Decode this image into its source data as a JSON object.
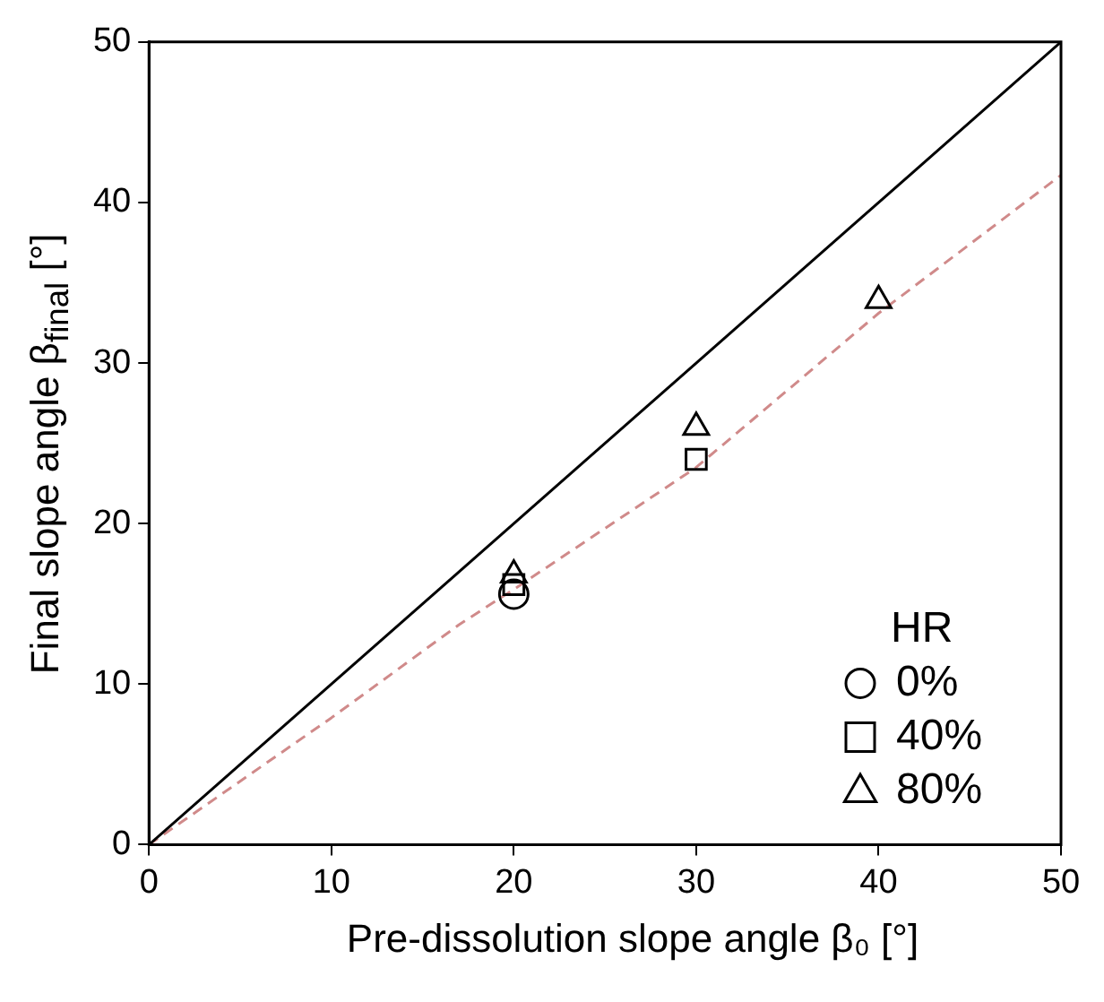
{
  "chart_data": {
    "type": "scatter",
    "xlabel": "Pre-dissolution slope angle β₀ [°]",
    "ylabel": "Final slope angle β$_{final}$ [°]",
    "xlim": [
      0,
      50
    ],
    "ylim": [
      0,
      50
    ],
    "xticks": [
      0,
      10,
      20,
      30,
      40,
      50
    ],
    "yticks": [
      0,
      10,
      20,
      30,
      40,
      50
    ],
    "legend": "bottom right",
    "legend_title": "HR",
    "series": [
      {
        "name": "0%",
        "type": "scatter",
        "marker": "circle",
        "color": "#000000",
        "x": [
          20
        ],
        "values": [
          15.6
        ]
      },
      {
        "name": "40%",
        "type": "scatter",
        "marker": "square",
        "color": "#000000",
        "x": [
          20,
          30
        ],
        "values": [
          16.2,
          24
        ]
      },
      {
        "name": "80%",
        "type": "scatter",
        "marker": "triangle",
        "color": "#000000",
        "x": [
          20,
          30,
          40
        ],
        "values": [
          16.8,
          26,
          33.9
        ]
      },
      {
        "type": "line",
        "marker": "none",
        "line_style": "solid",
        "color": "#000000",
        "x": [
          0,
          50
        ],
        "values": [
          0,
          50
        ]
      },
      {
        "type": "line",
        "marker": "none",
        "line_style": "dashed",
        "color": "#d08a8a",
        "x": [
          0,
          10,
          17,
          20,
          30,
          40,
          50
        ],
        "values": [
          0,
          7.9,
          13.7,
          15.9,
          23.5,
          33.1,
          41.7
        ]
      }
    ]
  }
}
